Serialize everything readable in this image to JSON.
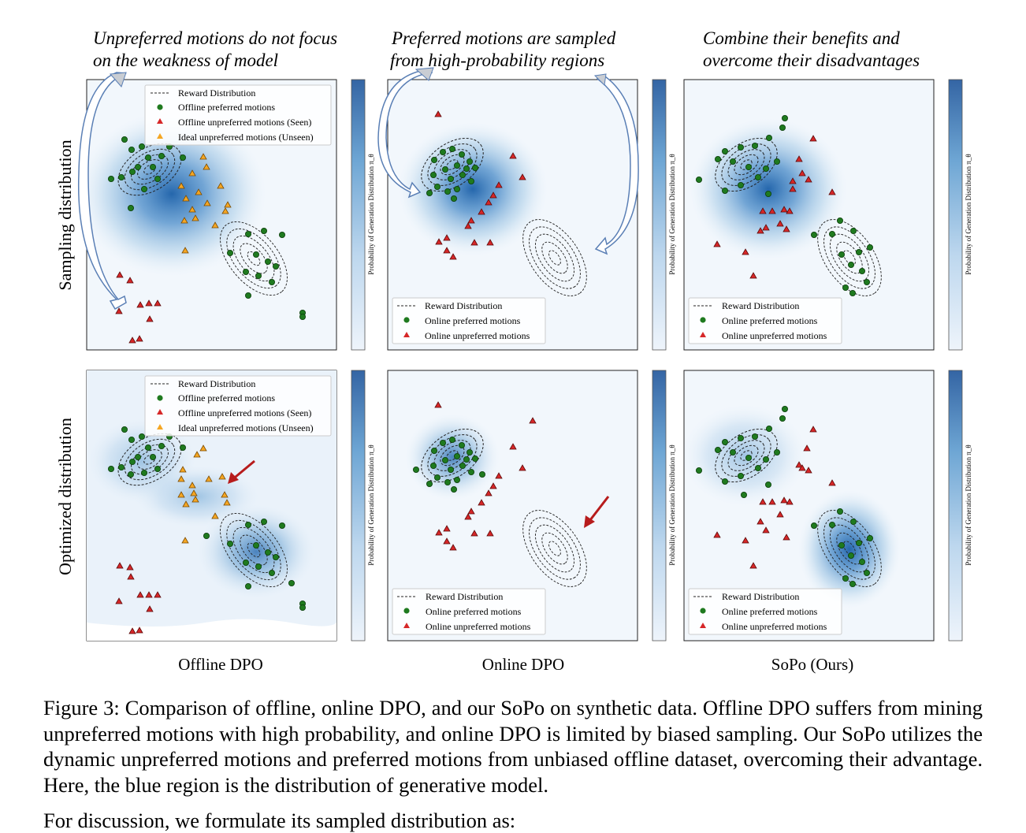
{
  "figure": {
    "column_headers": [
      "Unpreferred motions do not focus on the weakness of model",
      "Preferred motions are sampled from high-probability regions",
      "Combine their benefits and overcome their disadvantages"
    ],
    "column_header_lines": [
      [
        "Unpreferred motions do not focus",
        "on the weakness of model"
      ],
      [
        "Preferred motions are sampled",
        "from high-probability regions"
      ],
      [
        "Combine their benefits and",
        "overcome their disadvantages"
      ]
    ],
    "row_labels": [
      "Sampling distribution",
      "Optimized distribution"
    ],
    "column_labels": [
      "Offline DPO",
      "Online DPO",
      "SoPo (Ours)"
    ],
    "colorbar_label": "Probability of Generation Distribution π_θ",
    "colors": {
      "preferred": "#1f7a1f",
      "unpreferred": "#d62728",
      "ideal": "#f5a623",
      "density": "#2166ac",
      "arrow": "#b71c1c",
      "curved_arrow": "#5a7fb5"
    }
  },
  "legends": {
    "offline": [
      "Reward Distribution",
      "Offline preferred motions",
      "Offline unpreferred motions (Seen)",
      "Ideal unpreferred motions (Unseen)"
    ],
    "online": [
      "Reward Distribution",
      "Online preferred motions",
      "Online unpreferred motions"
    ]
  },
  "chart_data": [
    {
      "type": "scatter",
      "title": "Offline DPO — Sampling distribution",
      "series": [
        {
          "name": "Offline preferred motions",
          "values": [
            [
              -2.2,
              2.1
            ],
            [
              -1.9,
              2.5
            ],
            [
              -1.6,
              2.2
            ],
            [
              -1.4,
              2.8
            ],
            [
              -1.2,
              2.4
            ],
            [
              -1.0,
              2.1
            ],
            [
              -1.7,
              1.6
            ],
            [
              -2.0,
              1.2
            ],
            [
              -1.3,
              1.8
            ],
            [
              1.6,
              -0.3
            ],
            [
              1.9,
              -0.9
            ],
            [
              2.2,
              -0.6
            ],
            [
              1.4,
              -1.3
            ],
            [
              2.5,
              -1.1
            ],
            [
              2.8,
              -0.2
            ],
            [
              3.1,
              -0.5
            ],
            [
              2.0,
              -1.6
            ],
            [
              3.4,
              -2.0
            ]
          ]
        },
        {
          "name": "Offline unpreferred motions (Seen)",
          "values": [
            [
              -1.8,
              -1.3
            ],
            [
              -1.5,
              -1.6
            ],
            [
              -1.3,
              -2.1
            ],
            [
              -1.1,
              -2.3
            ],
            [
              -0.9,
              -2.0
            ],
            [
              -1.6,
              -2.8
            ]
          ]
        },
        {
          "name": "Ideal unpreferred motions (Unseen)",
          "values": [
            [
              -0.5,
              1.5
            ],
            [
              -0.2,
              1.9
            ],
            [
              0.1,
              1.0
            ],
            [
              0.3,
              0.6
            ],
            [
              -0.4,
              0.5
            ],
            [
              0.6,
              1.1
            ],
            [
              0.9,
              0.3
            ],
            [
              0.4,
              -0.1
            ],
            [
              -0.1,
              0.2
            ]
          ]
        }
      ]
    },
    {
      "type": "scatter",
      "title": "Online DPO — Sampling distribution",
      "series": [
        {
          "name": "Online preferred motions",
          "values": [
            [
              -1.8,
              1.4
            ],
            [
              -1.5,
              1.9
            ],
            [
              -1.3,
              1.5
            ],
            [
              -1.1,
              2.0
            ],
            [
              -0.9,
              1.6
            ],
            [
              -1.6,
              1.1
            ],
            [
              -1.2,
              1.0
            ],
            [
              -0.8,
              1.3
            ],
            [
              -1.4,
              2.3
            ]
          ]
        },
        {
          "name": "Online unpreferred motions",
          "values": [
            [
              -1.2,
              2.9
            ],
            [
              0.3,
              1.2
            ],
            [
              0.6,
              0.8
            ],
            [
              0.9,
              1.5
            ],
            [
              -0.2,
              0.1
            ],
            [
              -0.6,
              -0.4
            ],
            [
              -0.3,
              -0.6
            ],
            [
              0.2,
              -0.3
            ],
            [
              -0.9,
              -0.2
            ]
          ]
        }
      ]
    },
    {
      "type": "scatter",
      "title": "SoPo (Ours) — Sampling distribution",
      "series": [
        {
          "name": "Online preferred motions",
          "values": [
            [
              -1.9,
              2.1
            ],
            [
              -1.5,
              2.6
            ],
            [
              -1.2,
              2.3
            ],
            [
              -1.0,
              1.9
            ],
            [
              -1.6,
              1.6
            ],
            [
              1.6,
              -0.3
            ],
            [
              1.9,
              -0.8
            ],
            [
              2.2,
              -1.2
            ],
            [
              2.5,
              -0.6
            ],
            [
              2.0,
              -1.6
            ]
          ]
        },
        {
          "name": "Online unpreferred motions",
          "values": [
            [
              -0.2,
              1.5
            ],
            [
              0.1,
              1.1
            ],
            [
              0.4,
              1.8
            ],
            [
              0.6,
              1.0
            ],
            [
              -0.4,
              0.6
            ],
            [
              0.2,
              0.3
            ],
            [
              -0.9,
              -0.3
            ],
            [
              -0.5,
              -0.9
            ],
            [
              0.5,
              -0.2
            ]
          ]
        }
      ]
    }
  ]
}
